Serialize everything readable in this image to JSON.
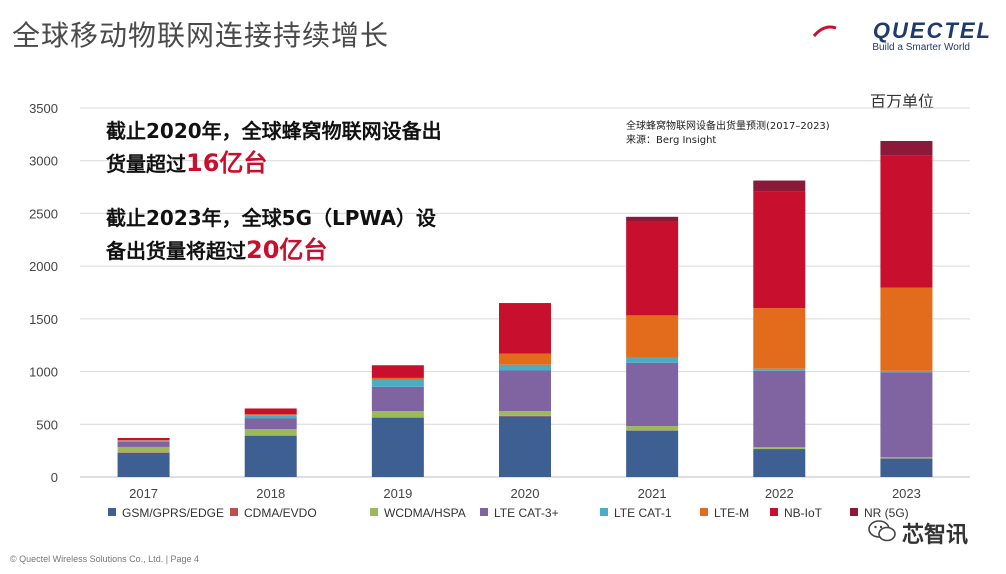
{
  "slide": {
    "title": "全球移动物联网连接持续增长",
    "unit": "百万单位",
    "source_line1": "全球蜂窝物联网设备出货量预测(2017–2023)",
    "source_line2": "来源：Berg Insight",
    "footer": "© Quectel Wireless Solutions Co., Ltd. | Page 4"
  },
  "logo": {
    "name": "QUECTEL",
    "tagline": "Build a Smarter World"
  },
  "headlines": {
    "line1": "截止2020年，全球蜂窝物联网设备出",
    "line2_prefix": "货量超过",
    "line2_highlight": "16亿台",
    "line3": "截止2023年，全球5G（LPWA）设",
    "line4_prefix": "备出货量将超过",
    "line4_highlight": "20亿台"
  },
  "watermark": {
    "text": "芯智讯"
  },
  "colors": {
    "headline_highlight": "#c8102e",
    "logo_blue": "#1f3a6e"
  },
  "chart_data": {
    "type": "bar",
    "stacked": true,
    "title": "全球蜂窝物联网设备出货量预测(2017–2023)",
    "ylabel": "百万单位",
    "ylim": [
      0,
      3500
    ],
    "yticks": [
      0,
      500,
      1000,
      1500,
      2000,
      2500,
      3000,
      3500
    ],
    "grid": true,
    "legend_position": "bottom",
    "categories": [
      "2017",
      "2018",
      "2019",
      "2020",
      "2021",
      "2022",
      "2023"
    ],
    "series": [
      {
        "name": "GSM/GPRS/EDGE",
        "color": "#3e5f91",
        "values": [
          230,
          390,
          560,
          575,
          440,
          265,
          175
        ]
      },
      {
        "name": "CDMA/EVDO",
        "color": "#c0504d",
        "values": [
          5,
          5,
          5,
          5,
          3,
          2,
          2
        ]
      },
      {
        "name": "WCDMA/HSPA",
        "color": "#9bbb59",
        "values": [
          50,
          60,
          60,
          45,
          40,
          15,
          10
        ]
      },
      {
        "name": "LTE CAT-3+",
        "color": "#8064a2",
        "values": [
          50,
          100,
          230,
          385,
          600,
          725,
          805
        ]
      },
      {
        "name": "LTE CAT-1",
        "color": "#4bacc6",
        "values": [
          10,
          30,
          70,
          55,
          50,
          20,
          15
        ]
      },
      {
        "name": "LTE-M",
        "color": "#e36c1c",
        "values": [
          5,
          10,
          15,
          105,
          400,
          575,
          790
        ]
      },
      {
        "name": "NB-IoT",
        "color": "#c8102e",
        "values": [
          20,
          55,
          120,
          480,
          890,
          1110,
          1250
        ]
      },
      {
        "name": "NR (5G)",
        "color": "#8b1a3a",
        "values": [
          0,
          0,
          0,
          0,
          45,
          100,
          140
        ]
      }
    ]
  }
}
